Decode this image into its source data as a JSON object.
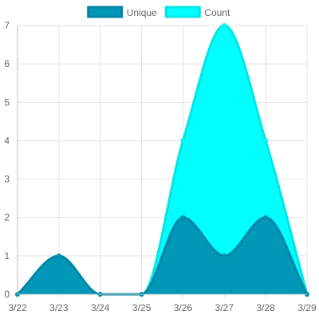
{
  "chart_data": {
    "type": "area",
    "categories": [
      "3/22",
      "3/23",
      "3/24",
      "3/25",
      "3/26",
      "3/27",
      "3/28",
      "3/29"
    ],
    "series": [
      {
        "name": "Unique",
        "values": [
          0,
          1,
          0,
          0,
          2,
          1,
          2,
          0
        ],
        "fill": "#0097b8",
        "stroke": "#0086a6"
      },
      {
        "name": "Count",
        "values": [
          0,
          1,
          0,
          0,
          4,
          7,
          4,
          0
        ],
        "fill": "#00ffff",
        "stroke": "#00e6e6"
      }
    ],
    "y_ticks": [
      "0",
      "1",
      "2",
      "3",
      "4",
      "5",
      "6",
      "7"
    ],
    "ylim": [
      0,
      7
    ],
    "grid": true,
    "legend_position": "top-center"
  }
}
